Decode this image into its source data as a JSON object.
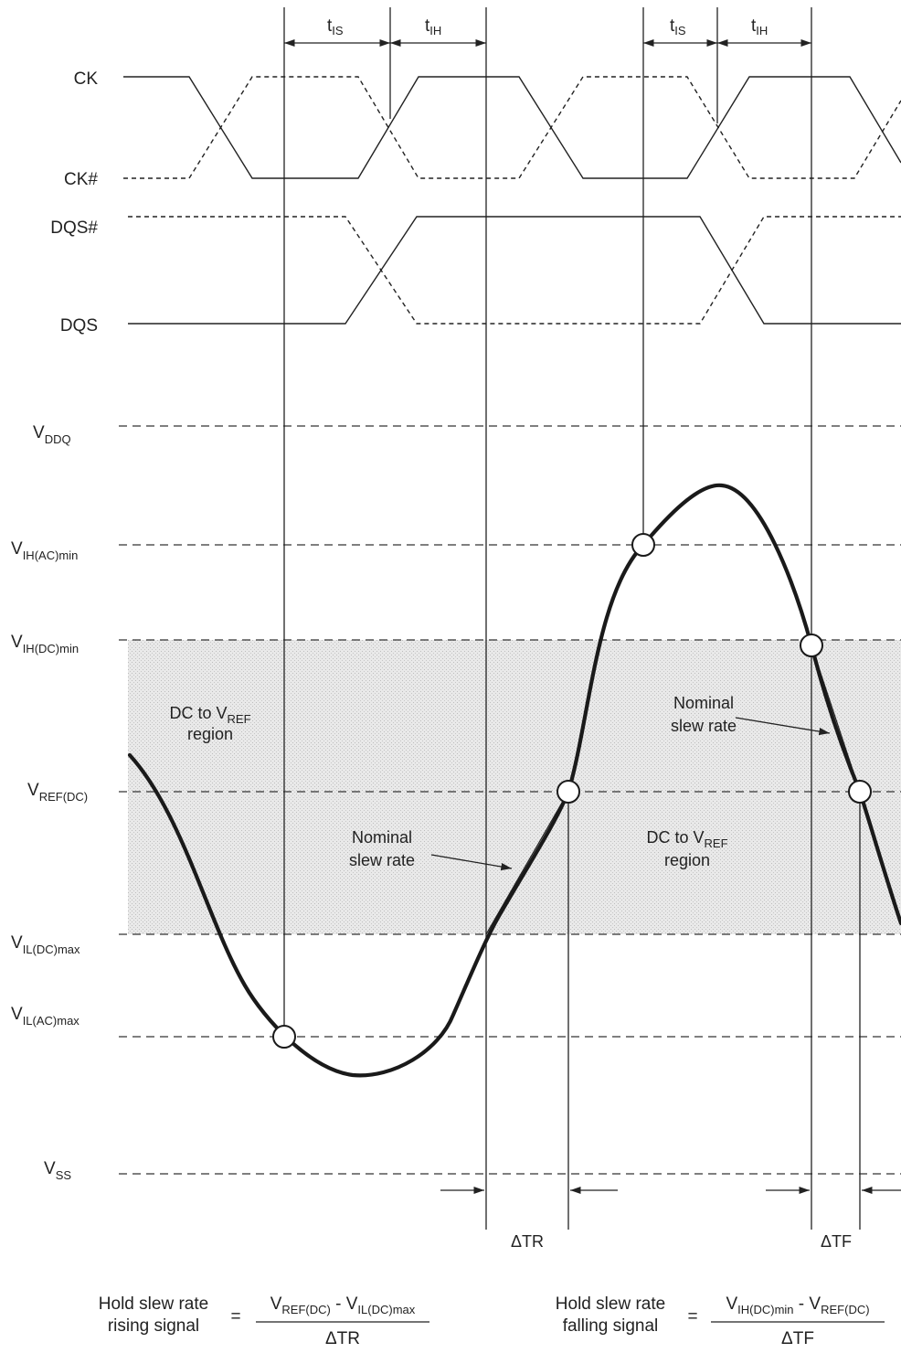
{
  "timing_labels": {
    "tis": {
      "base": "t",
      "sub": "IS"
    },
    "tih": {
      "base": "t",
      "sub": "IH"
    }
  },
  "signals": {
    "ck": "CK",
    "ck_n": "CK#",
    "dqs_n": "DQS#",
    "dqs": "DQS"
  },
  "levels": {
    "vddq": {
      "base": "V",
      "sub": "DDQ"
    },
    "vih_ac": {
      "base": "V",
      "sub": "IH(AC)min"
    },
    "vih_dc": {
      "base": "V",
      "sub": "IH(DC)min"
    },
    "vref_dc": {
      "base": "V",
      "sub": "REF(DC)"
    },
    "vil_dc": {
      "base": "V",
      "sub": "IL(DC)max"
    },
    "vil_ac": {
      "base": "V",
      "sub": "IL(AC)max"
    },
    "vss": {
      "base": "V",
      "sub": "SS"
    }
  },
  "annotations": {
    "dc_region_left_line1": "DC to V",
    "dc_region_left_sub": "REF",
    "dc_region_left_line2": "region",
    "dc_region_right_line1": "DC to V",
    "dc_region_right_sub": "REF",
    "dc_region_right_line2": "region",
    "nominal_right_line1": "Nominal",
    "nominal_right_line2": "slew rate",
    "nominal_center_line1": "Nominal",
    "nominal_center_line2": "slew rate",
    "delta_tr": "ΔTR",
    "delta_tf": "ΔTF"
  },
  "formulas": {
    "rising": {
      "label_line1": "Hold slew rate",
      "label_line2": "rising signal",
      "equals": "=",
      "num_a_base": "V",
      "num_a_sub": "REF(DC)",
      "num_op": " - ",
      "num_b_base": "V",
      "num_b_sub": "IL(DC)max",
      "denominator": "ΔTR"
    },
    "falling": {
      "label_line1": "Hold slew rate",
      "label_line2": "falling signal",
      "equals": "=",
      "num_a_base": "V",
      "num_a_sub": "IH(DC)min",
      "num_op": " - ",
      "num_b_base": "V",
      "num_b_sub": "REF(DC)",
      "denominator": "ΔTF"
    }
  },
  "colors": {
    "line": "#222222",
    "region_fill": "#d4d4d4"
  }
}
